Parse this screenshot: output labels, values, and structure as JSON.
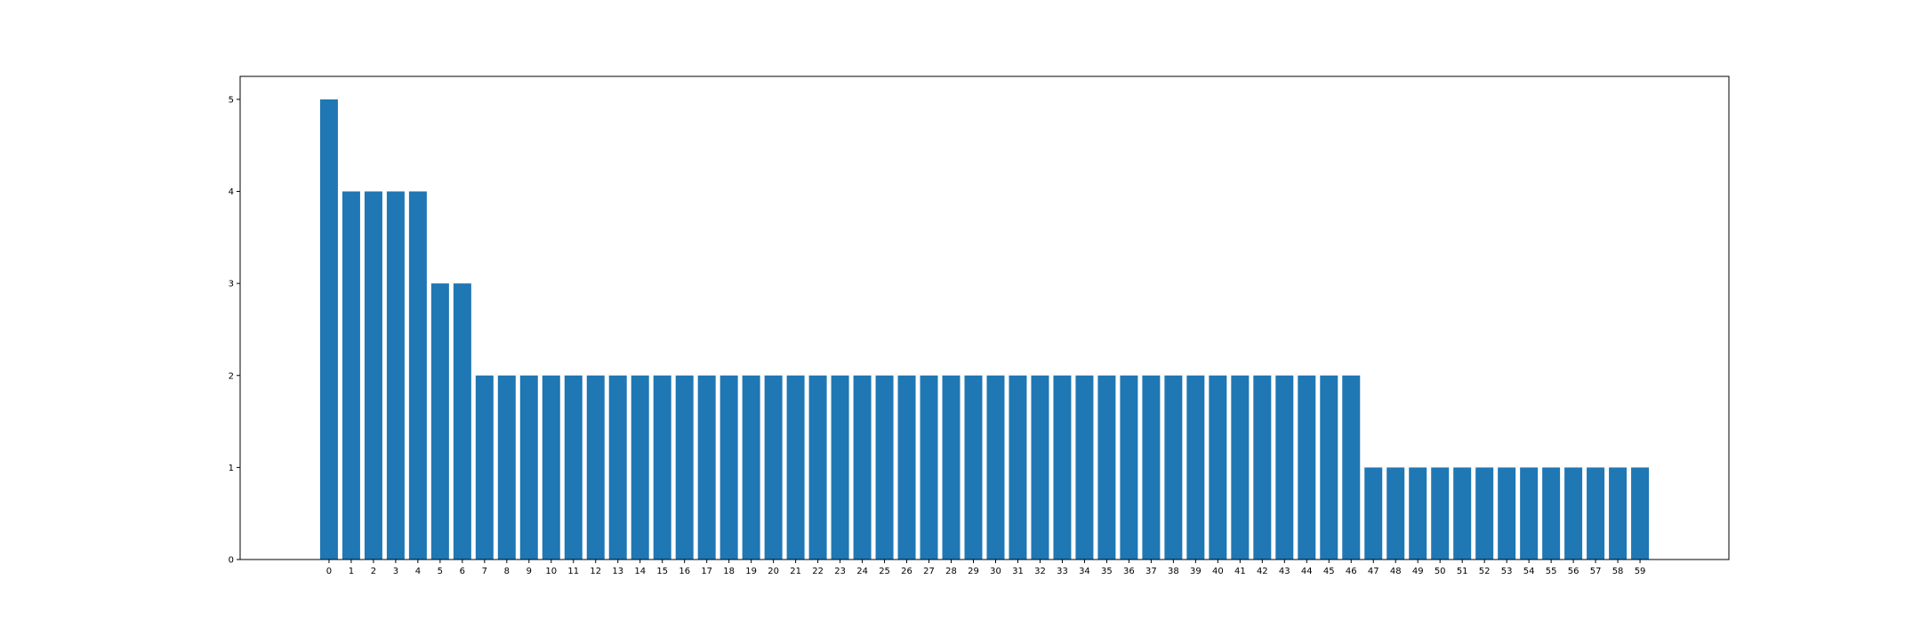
{
  "chart_data": {
    "type": "bar",
    "title": "",
    "xlabel": "",
    "ylabel": "",
    "categories": [
      "0",
      "1",
      "2",
      "3",
      "4",
      "5",
      "6",
      "7",
      "8",
      "9",
      "10",
      "11",
      "12",
      "13",
      "14",
      "15",
      "16",
      "17",
      "18",
      "19",
      "20",
      "21",
      "22",
      "23",
      "24",
      "25",
      "26",
      "27",
      "28",
      "29",
      "30",
      "31",
      "32",
      "33",
      "34",
      "35",
      "36",
      "37",
      "38",
      "39",
      "40",
      "41",
      "42",
      "43",
      "44",
      "45",
      "46",
      "47",
      "48",
      "49",
      "50",
      "51",
      "52",
      "53",
      "54",
      "55",
      "56",
      "57",
      "58",
      "59"
    ],
    "values": [
      5,
      4,
      4,
      4,
      4,
      3,
      3,
      2,
      2,
      2,
      2,
      2,
      2,
      2,
      2,
      2,
      2,
      2,
      2,
      2,
      2,
      2,
      2,
      2,
      2,
      2,
      2,
      2,
      2,
      2,
      2,
      2,
      2,
      2,
      2,
      2,
      2,
      2,
      2,
      2,
      2,
      2,
      2,
      2,
      2,
      2,
      2,
      1,
      1,
      1,
      1,
      1,
      1,
      1,
      1,
      1,
      1,
      1,
      1,
      1
    ],
    "ylim": [
      0,
      5.25
    ],
    "yticks": [
      0,
      1,
      2,
      3,
      4,
      5
    ],
    "grid": false,
    "legend": "none",
    "colors": {
      "bar": "#1f77b4",
      "axes": "#000000",
      "background": "#ffffff"
    }
  }
}
